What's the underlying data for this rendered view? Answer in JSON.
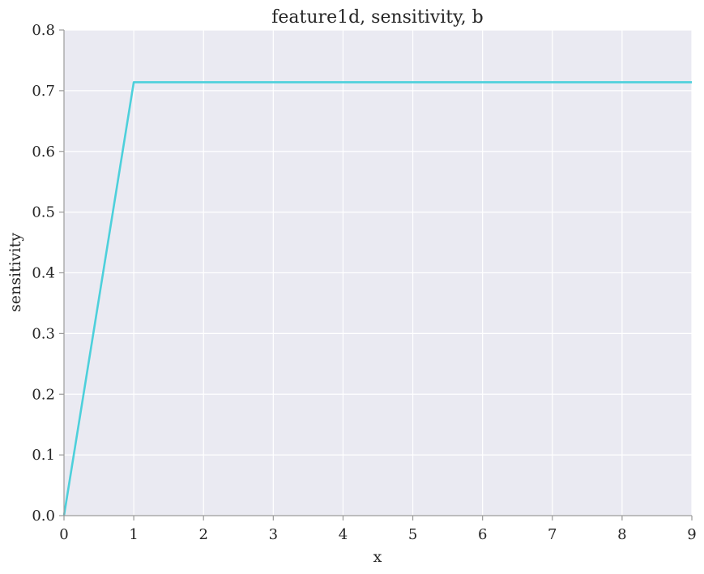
{
  "chart_data": {
    "type": "line",
    "title": "feature1d, sensitivity, b",
    "xlabel": "x",
    "ylabel": "sensitivity",
    "xlim": [
      0,
      9
    ],
    "ylim": [
      0.0,
      0.8
    ],
    "xticks": [
      "0",
      "1",
      "2",
      "3",
      "4",
      "5",
      "6",
      "7",
      "8",
      "9"
    ],
    "yticks": [
      "0.0",
      "0.1",
      "0.2",
      "0.3",
      "0.4",
      "0.5",
      "0.6",
      "0.7",
      "0.8"
    ],
    "grid": true,
    "legend": "none",
    "colors": {
      "background": "#eaeaf2",
      "line": "#4dd0db"
    },
    "series": [
      {
        "x": [
          0,
          1,
          2,
          3,
          4,
          5,
          6,
          7,
          8,
          9
        ],
        "y": [
          0.0,
          0.714,
          0.714,
          0.714,
          0.714,
          0.714,
          0.714,
          0.714,
          0.714,
          0.714
        ]
      }
    ]
  }
}
